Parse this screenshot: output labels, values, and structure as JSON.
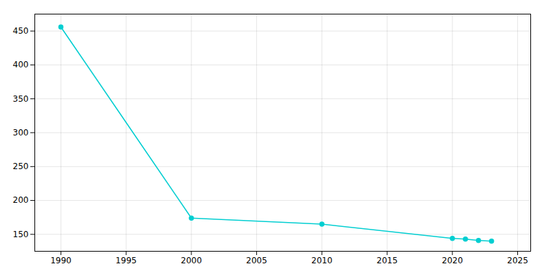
{
  "chart_data": {
    "type": "line",
    "x": [
      1990,
      2000,
      2010,
      2020,
      2021,
      2022,
      2023
    ],
    "values": [
      456,
      174,
      165,
      144,
      143,
      141,
      140
    ],
    "color": "#00CED1",
    "marker": "circle",
    "xlim": [
      1988,
      2026
    ],
    "ylim": [
      125,
      475
    ],
    "xticks": [
      1990,
      1995,
      2000,
      2005,
      2010,
      2015,
      2020,
      2025
    ],
    "yticks": [
      150,
      200,
      250,
      300,
      350,
      400,
      450
    ],
    "grid": true
  }
}
